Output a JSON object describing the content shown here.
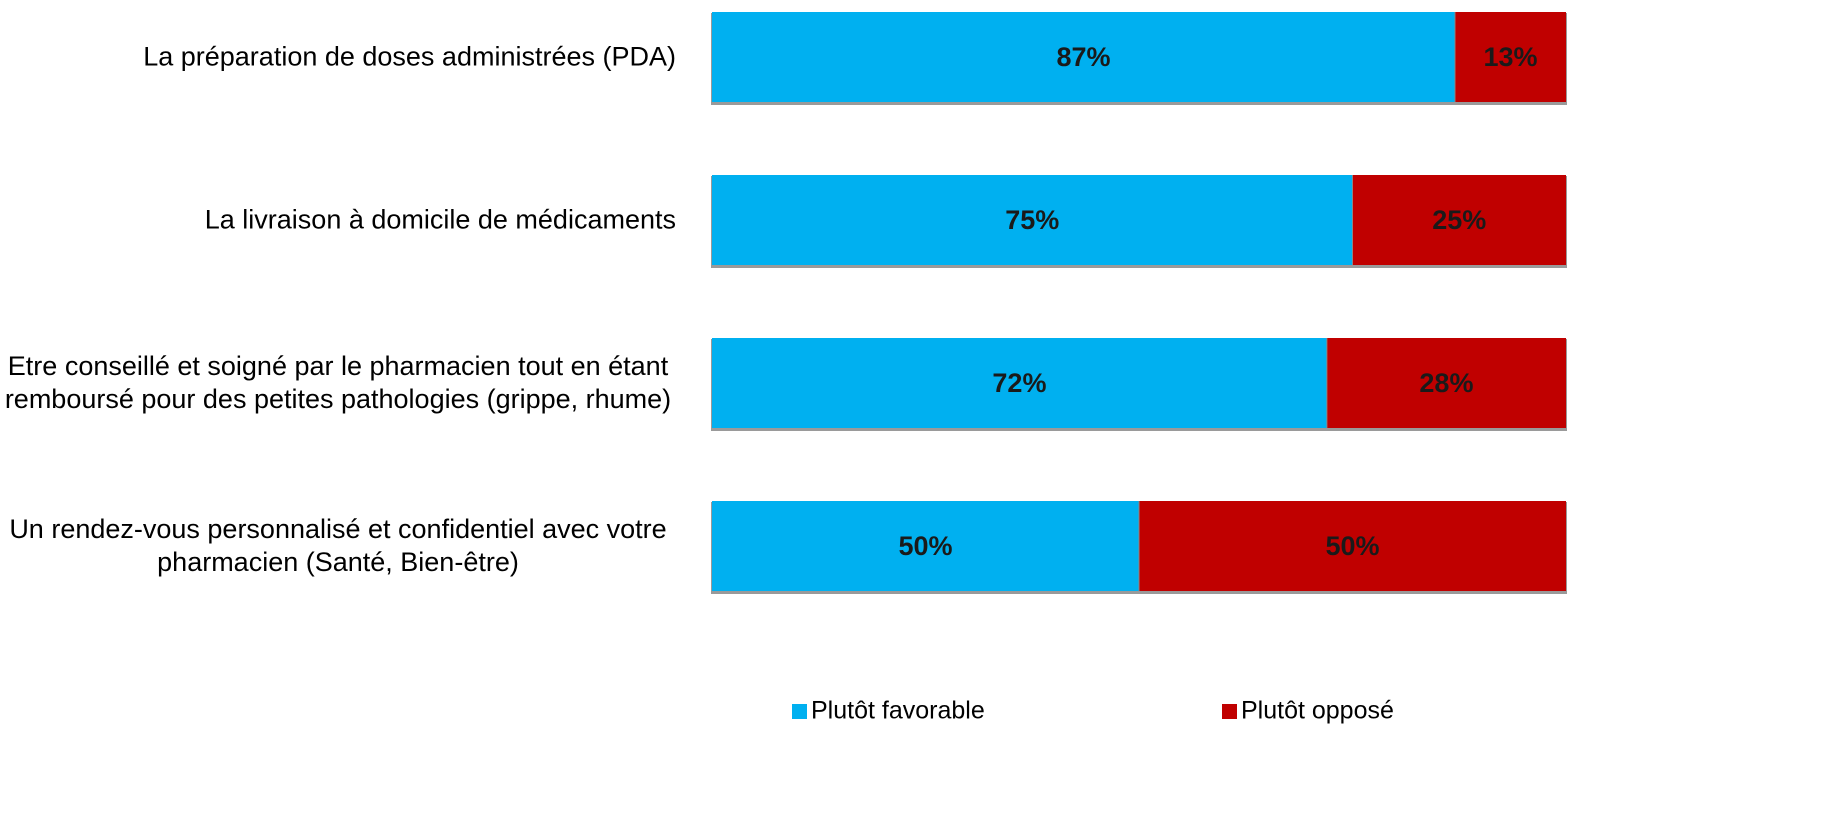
{
  "chart_data": {
    "type": "stacked-bar-horizontal",
    "categories": [
      "La préparation de doses administrées (PDA)",
      "La livraison à domicile de médicaments",
      "Etre conseillé et soigné par le pharmacien tout en étant remboursé pour des petites pathologies (grippe, rhume)",
      "Un rendez-vous personnalisé et confidentiel avec votre pharmacien (Santé, Bien-être)"
    ],
    "series": [
      {
        "name": "Plutôt favorable",
        "color": "#00b0f0",
        "values": [
          87,
          75,
          72,
          50
        ],
        "value_labels": [
          "87%",
          "75%",
          "72%",
          "50%"
        ]
      },
      {
        "name": "Plutôt opposé",
        "color": "#c00000",
        "values": [
          13,
          25,
          28,
          50
        ],
        "value_labels": [
          "13%",
          "25%",
          "28%",
          "50%"
        ]
      }
    ],
    "legend": "bottom"
  }
}
